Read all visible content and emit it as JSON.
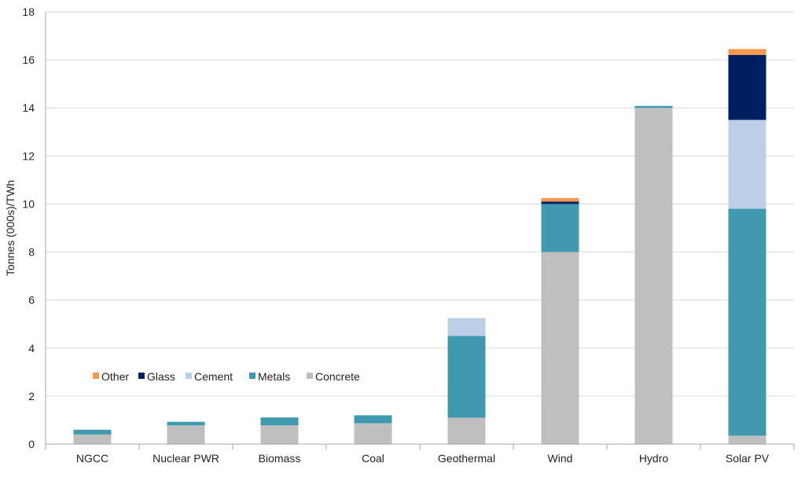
{
  "chart_data": {
    "type": "bar",
    "stacked": true,
    "title": "",
    "xlabel": "",
    "ylabel": "Tonnes (000s)/TWh",
    "ylim": [
      0,
      18
    ],
    "yticks": [
      0,
      2,
      4,
      6,
      8,
      10,
      12,
      14,
      16,
      18
    ],
    "grid": true,
    "legend_position": "inside-bottom-left",
    "categories": [
      "NGCC",
      "Nuclear PWR",
      "Biomass",
      "Coal",
      "Geothermal",
      "Wind",
      "Hydro",
      "Solar PV"
    ],
    "series": [
      {
        "name": "Concrete",
        "color": "#bfbfbf",
        "values": [
          0.4,
          0.78,
          0.78,
          0.87,
          1.1,
          8.0,
          14.0,
          0.35
        ]
      },
      {
        "name": "Metals",
        "color": "#4199b0",
        "values": [
          0.2,
          0.15,
          0.33,
          0.33,
          3.4,
          2.0,
          0.08,
          9.45
        ]
      },
      {
        "name": "Cement",
        "color": "#bccfe6",
        "values": [
          0,
          0,
          0,
          0,
          0.75,
          0,
          0,
          3.7
        ]
      },
      {
        "name": "Glass",
        "color": "#001f60",
        "values": [
          0,
          0,
          0,
          0,
          0,
          0.1,
          0,
          2.7
        ]
      },
      {
        "name": "Other",
        "color": "#f29a4f",
        "values": [
          0,
          0,
          0,
          0,
          0,
          0.15,
          0,
          0.25
        ]
      }
    ],
    "legend_order": [
      "Other",
      "Glass",
      "Cement",
      "Metals",
      "Concrete"
    ]
  }
}
